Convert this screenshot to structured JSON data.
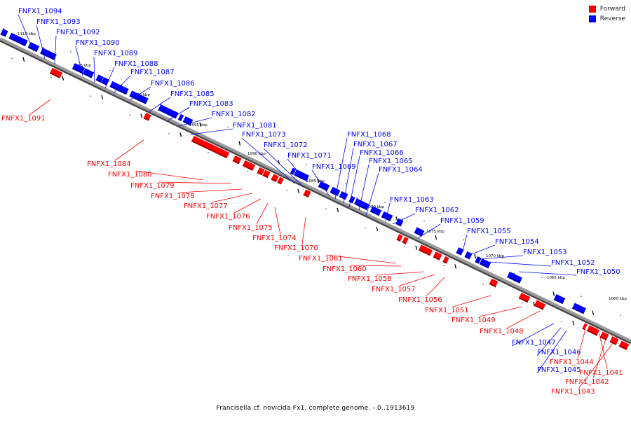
{
  "title": "Francisella cf. novicida Fx1, complete genome. - 0..1913619",
  "legend": [
    {
      "label": "Forward",
      "color": "#ff0000"
    },
    {
      "label": "Reverse",
      "color": "#0000ff"
    }
  ],
  "colors": {
    "forward": "#ff0000",
    "reverse": "#0000ff",
    "axis": "#808080"
  },
  "ticks": [
    "1110 kbp",
    "1105 kbp",
    "1100 kbp",
    "1095 kbp",
    "1090 kbp",
    "1085 kbp",
    "1080 kbp",
    "1075 kbp",
    "1070 kbp",
    "1065 kbp",
    "1060 kbp"
  ],
  "reverse_genes": [
    "FNFX1_1094",
    "FNFX1_1093",
    "FNFX1_1092",
    "FNFX1_1090",
    "FNFX1_1089",
    "FNFX1_1088",
    "FNFX1_1087",
    "FNFX1_1086",
    "FNFX1_1085",
    "FNFX1_1083",
    "FNFX1_1082",
    "FNFX1_1081",
    "FNFX1_1073",
    "FNFX1_1072",
    "FNFX1_1071",
    "FNFX1_1069",
    "FNFX1_1068",
    "FNFX1_1067",
    "FNFX1_1066",
    "FNFX1_1065",
    "FNFX1_1064",
    "FNFX1_1063",
    "FNFX1_1062",
    "FNFX1_1059",
    "FNFX1_1055",
    "FNFX1_1054",
    "FNFX1_1053",
    "FNFX1_1052",
    "FNFX1_1050",
    "FNFX1_1047",
    "FNFX1_1046",
    "FNFX1_1045"
  ],
  "forward_genes": [
    "FNFX1_1091",
    "FNFX1_1084",
    "FNFX1_1080",
    "FNFX1_1079",
    "FNFX1_1078",
    "FNFX1_1077",
    "FNFX1_1076",
    "FNFX1_1075",
    "FNFX1_1074",
    "FNFX1_1070",
    "FNFX1_1061",
    "FNFX1_1060",
    "FNFX1_1058",
    "FNFX1_1057",
    "FNFX1_1056",
    "FNFX1_1051",
    "FNFX1_1049",
    "FNFX1_1048",
    "FNFX1_1044",
    "FNFX1_1041",
    "FNFX1_1042",
    "FNFX1_1043"
  ]
}
